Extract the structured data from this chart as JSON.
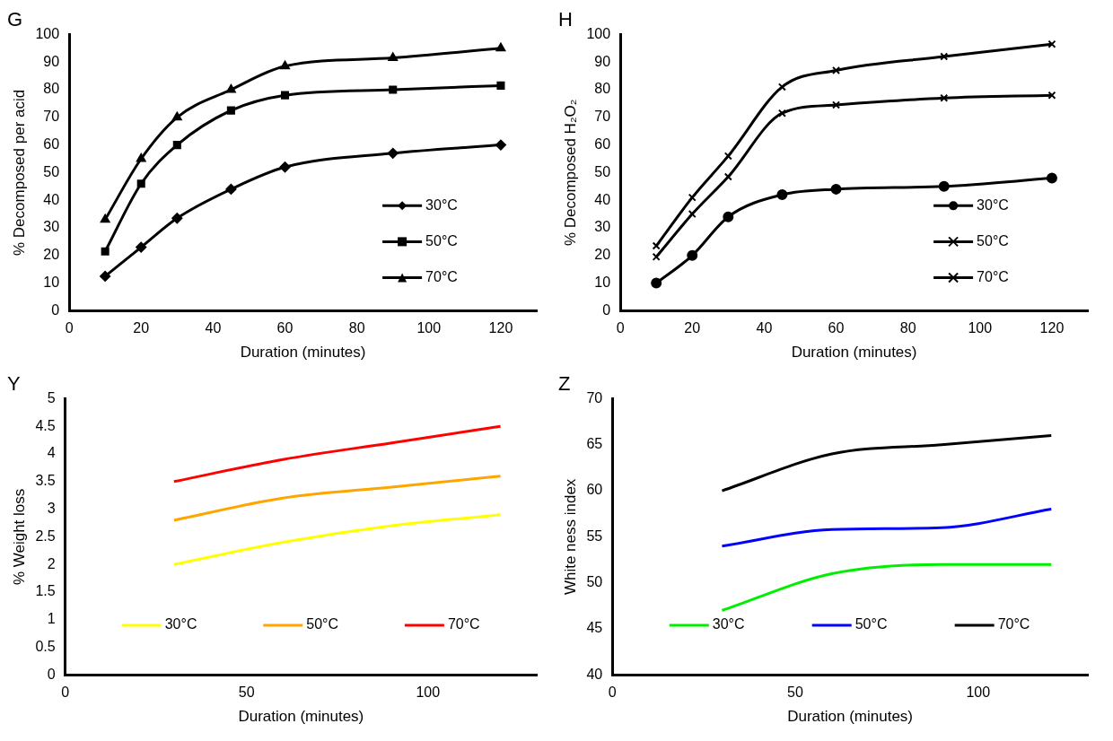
{
  "chart_data": [
    {
      "type": "line",
      "title": "G",
      "xlabel": "Duration (minutes)",
      "ylabel": "% Decomposed per acid",
      "x": [
        10,
        20,
        30,
        45,
        60,
        90,
        120
      ],
      "xlim": [
        0,
        130
      ],
      "xticks": [
        0,
        20,
        40,
        60,
        80,
        100,
        120
      ],
      "ylim": [
        0,
        100
      ],
      "yticks": [
        0,
        10,
        20,
        30,
        40,
        50,
        60,
        70,
        80,
        90,
        100
      ],
      "legend": "right",
      "series": [
        {
          "name": "30°C",
          "color": "#000000",
          "marker": "diamond",
          "values": [
            12.5,
            23,
            33.5,
            44,
            52,
            57,
            60
          ]
        },
        {
          "name": "50°C",
          "color": "#000000",
          "marker": "square",
          "values": [
            21.5,
            46,
            60,
            72.5,
            78,
            80,
            81.5
          ]
        },
        {
          "name": "70°C",
          "color": "#000000",
          "marker": "triangle",
          "values": [
            33,
            55,
            70,
            80,
            88.5,
            91.5,
            95
          ]
        }
      ]
    },
    {
      "type": "line",
      "title": "H",
      "xlabel": "Duration (minutes)",
      "ylabel": "% Decomposed H₂O₂",
      "x": [
        10,
        20,
        30,
        45,
        60,
        90,
        120
      ],
      "xlim": [
        0,
        130
      ],
      "xticks": [
        0,
        20,
        40,
        60,
        80,
        100,
        120
      ],
      "ylim": [
        0,
        100
      ],
      "yticks": [
        0,
        10,
        20,
        30,
        40,
        50,
        60,
        70,
        80,
        90,
        100
      ],
      "legend": "right",
      "series": [
        {
          "name": "30°C",
          "color": "#000000",
          "marker": "circle",
          "values": [
            10,
            20,
            34,
            42,
            44,
            45,
            48
          ]
        },
        {
          "name": "50°C",
          "color": "#000000",
          "marker": "cross",
          "values": [
            19.5,
            35,
            48.5,
            71.5,
            74.5,
            77,
            78
          ]
        },
        {
          "name": "70°C",
          "color": "#000000",
          "marker": "cross",
          "values": [
            23.5,
            41,
            56,
            81,
            87,
            92,
            96.5
          ]
        }
      ]
    },
    {
      "type": "line",
      "title": "Y",
      "xlabel": "Duration (minutes)",
      "ylabel": "% Weight loss",
      "x": [
        30,
        60,
        90,
        120
      ],
      "xlim": [
        0,
        130
      ],
      "xticks": [
        0,
        50,
        100
      ],
      "ylim": [
        0,
        5
      ],
      "yticks": [
        0,
        0.5,
        1,
        1.5,
        2,
        2.5,
        3,
        3.5,
        4,
        4.5,
        5
      ],
      "legend": "bottom",
      "series": [
        {
          "name": "30°C",
          "color": "#ffff00",
          "values": [
            2.0,
            2.4,
            2.7,
            2.9
          ]
        },
        {
          "name": "50°C",
          "color": "#ffa500",
          "values": [
            2.8,
            3.2,
            3.4,
            3.6
          ]
        },
        {
          "name": "70°C",
          "color": "#ff0000",
          "values": [
            3.5,
            3.9,
            4.2,
            4.5
          ]
        }
      ]
    },
    {
      "type": "line",
      "title": "Z",
      "xlabel": "Duration (minutes)",
      "ylabel": "White ness index",
      "x": [
        30,
        60,
        90,
        120
      ],
      "xlim": [
        0,
        130
      ],
      "xticks": [
        0,
        50,
        100
      ],
      "ylim": [
        40,
        70
      ],
      "yticks": [
        40,
        45,
        50,
        55,
        60,
        65,
        70
      ],
      "legend": "bottom",
      "series": [
        {
          "name": "30°C",
          "color": "#00ee00",
          "values": [
            47,
            51,
            52,
            52
          ]
        },
        {
          "name": "50°C",
          "color": "#0000ff",
          "values": [
            54,
            55.8,
            56,
            58
          ]
        },
        {
          "name": "70°C",
          "color": "#000000",
          "values": [
            60,
            64,
            65,
            66
          ]
        }
      ]
    }
  ]
}
